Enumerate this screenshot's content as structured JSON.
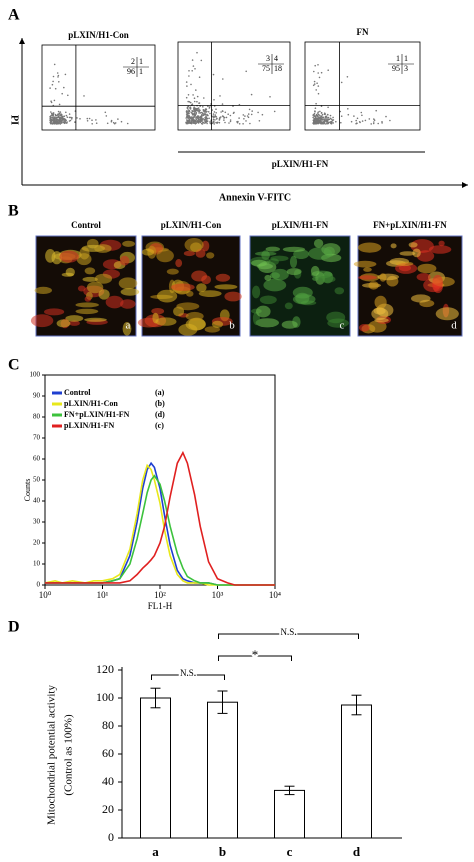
{
  "flow_panel": {
    "label": "A",
    "y_label": "PI",
    "x_label": "Annexin V-FITC",
    "group_label": "pLXIN/H1-FN",
    "plots": [
      {
        "title": "pLXIN/H1-Con",
        "quadrants": [
          2,
          1,
          96,
          1
        ]
      },
      {
        "quadrants": [
          3,
          4,
          75,
          18
        ]
      },
      {
        "title": "FN",
        "quadrants": [
          1,
          1,
          95,
          3
        ]
      }
    ]
  },
  "image_panel": {
    "label": "B",
    "images": [
      {
        "title": "Control",
        "tag": "a"
      },
      {
        "title": "pLXIN/H1-Con",
        "tag": "b"
      },
      {
        "title": "pLXIN/H1-FN",
        "tag": "c"
      },
      {
        "title": "FN+pLXIN/H1-FN",
        "tag": "d"
      }
    ]
  },
  "chart_data": [
    {
      "type": "line",
      "panel_label": "C",
      "x_label": "FL1-H",
      "y_label": "Counts",
      "log_x": true,
      "xlim": [
        1,
        10000
      ],
      "xticks": [
        {
          "value": 1,
          "label": "10⁰"
        },
        {
          "value": 10,
          "label": "10¹"
        },
        {
          "value": 100,
          "label": "10²"
        },
        {
          "value": 1000,
          "label": "10³"
        },
        {
          "value": 10000,
          "label": "10⁴"
        }
      ],
      "ylim": [
        0,
        100
      ],
      "yticks": [
        0,
        10,
        20,
        30,
        40,
        50,
        60,
        70,
        80,
        90,
        100
      ],
      "legend_tags": [
        "(a)",
        "(b)",
        "(d)",
        "(c)"
      ],
      "x": [
        1,
        1.5,
        2,
        3,
        5,
        7,
        10,
        15,
        20,
        30,
        40,
        50,
        60,
        70,
        80,
        100,
        120,
        150,
        200,
        250,
        300,
        400,
        500,
        700,
        1000,
        1500,
        2000,
        3000,
        5000,
        10000
      ],
      "series": [
        {
          "name": "Control",
          "color": "#1f3fd0",
          "values": [
            1,
            1,
            1,
            1,
            1,
            1,
            1,
            2,
            3,
            14,
            30,
            46,
            55,
            58,
            56,
            46,
            33,
            19,
            7,
            3,
            2,
            1,
            1,
            1,
            0,
            0,
            0,
            0,
            0,
            0
          ]
        },
        {
          "name": "pLXIN/H1-Con",
          "color": "#e8e81a",
          "values": [
            1,
            2,
            1,
            2,
            1,
            2,
            2,
            3,
            5,
            17,
            34,
            50,
            57,
            55,
            50,
            39,
            26,
            14,
            5,
            2,
            1,
            1,
            1,
            0,
            0,
            0,
            0,
            0,
            0,
            0
          ]
        },
        {
          "name": "FN+pLXIN/H1-FN",
          "color": "#3cc23c",
          "values": [
            1,
            1,
            1,
            1,
            1,
            1,
            1,
            2,
            3,
            10,
            22,
            34,
            44,
            50,
            52,
            48,
            40,
            28,
            15,
            8,
            4,
            2,
            1,
            1,
            0,
            0,
            0,
            0,
            0,
            0
          ]
        },
        {
          "name": "pLXIN/H1-FN",
          "color": "#e02020",
          "values": [
            1,
            1,
            1,
            1,
            1,
            1,
            1,
            1,
            1,
            2,
            5,
            8,
            10,
            12,
            14,
            20,
            28,
            42,
            58,
            63,
            58,
            43,
            28,
            11,
            3,
            1,
            0,
            0,
            0,
            0
          ]
        }
      ]
    },
    {
      "type": "bar",
      "panel_label": "D",
      "y_label": [
        "Mitochondrial potential activity",
        "(Control as  100%)"
      ],
      "categories": [
        "a",
        "b",
        "c",
        "d"
      ],
      "values": [
        100,
        97,
        34,
        95
      ],
      "errors": [
        7,
        8,
        3,
        7
      ],
      "color": "#ffffff",
      "ylim": [
        0,
        120
      ],
      "yticks": [
        0,
        20,
        40,
        60,
        80,
        100,
        120
      ],
      "annotations": [
        "N.S.",
        "*",
        "N.S."
      ]
    }
  ]
}
